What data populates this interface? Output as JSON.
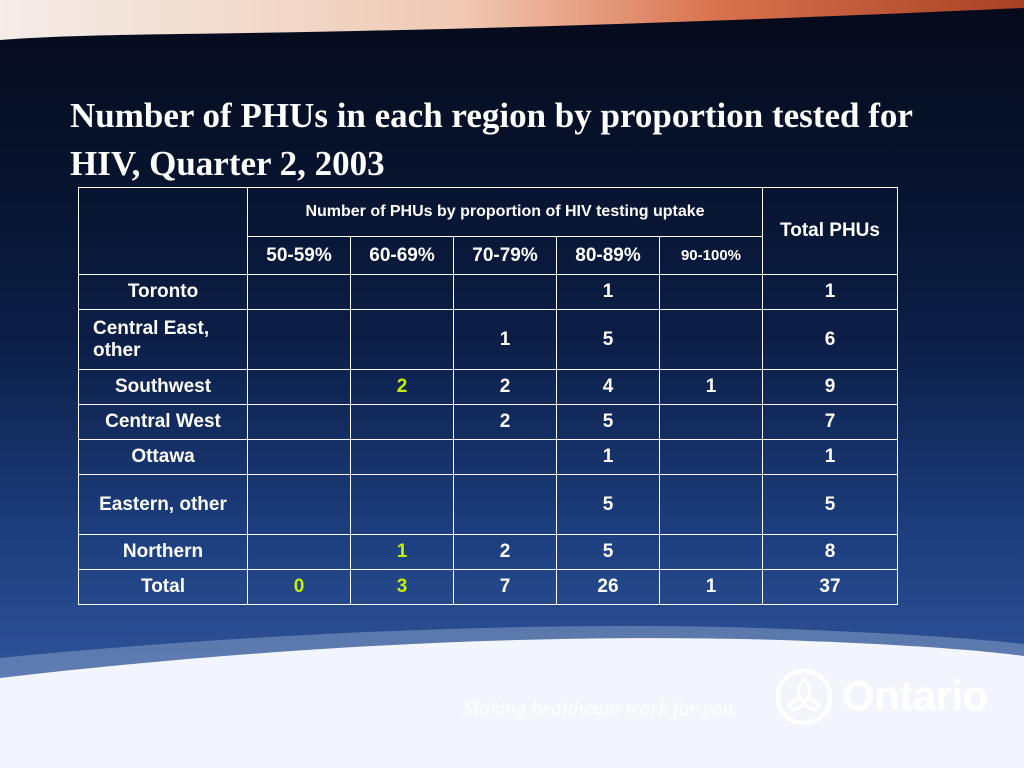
{
  "title": "Number of PHUs in each region by proportion tested for HIV, Quarter 2, 2003",
  "table": {
    "group_header": "Number of PHUs by proportion of HIV testing uptake",
    "total_header": "Total PHUs",
    "columns": [
      "50-59%",
      "60-69%",
      "70-79%",
      "80-89%",
      "90-100%"
    ],
    "rows": [
      {
        "region": "Toronto",
        "cells": [
          "",
          "",
          "",
          "1",
          ""
        ],
        "total": "1"
      },
      {
        "region": "Central East, other",
        "cells": [
          "",
          "",
          "1",
          "5",
          ""
        ],
        "total": "6"
      },
      {
        "region": "Southwest",
        "cells": [
          "",
          "2",
          "2",
          "4",
          "1"
        ],
        "total": "9"
      },
      {
        "region": "Central West",
        "cells": [
          "",
          "",
          "2",
          "5",
          ""
        ],
        "total": "7"
      },
      {
        "region": "Ottawa",
        "cells": [
          "",
          "",
          "",
          "1",
          ""
        ],
        "total": "1"
      },
      {
        "region": "Eastern, other",
        "cells": [
          "",
          "",
          "",
          "5",
          ""
        ],
        "total": "5"
      },
      {
        "region": "Northern",
        "cells": [
          "",
          "1",
          "2",
          "5",
          ""
        ],
        "total": "8"
      },
      {
        "region": "Total",
        "cells": [
          "0",
          "3",
          "7",
          "26",
          "1"
        ],
        "total": "37"
      }
    ],
    "highlight_color": "#c6f000"
  },
  "footer": {
    "slogan": "Making healthcare work for you.",
    "brand": "Ontario",
    "logo_icon": "ontario-trillium-icon"
  }
}
